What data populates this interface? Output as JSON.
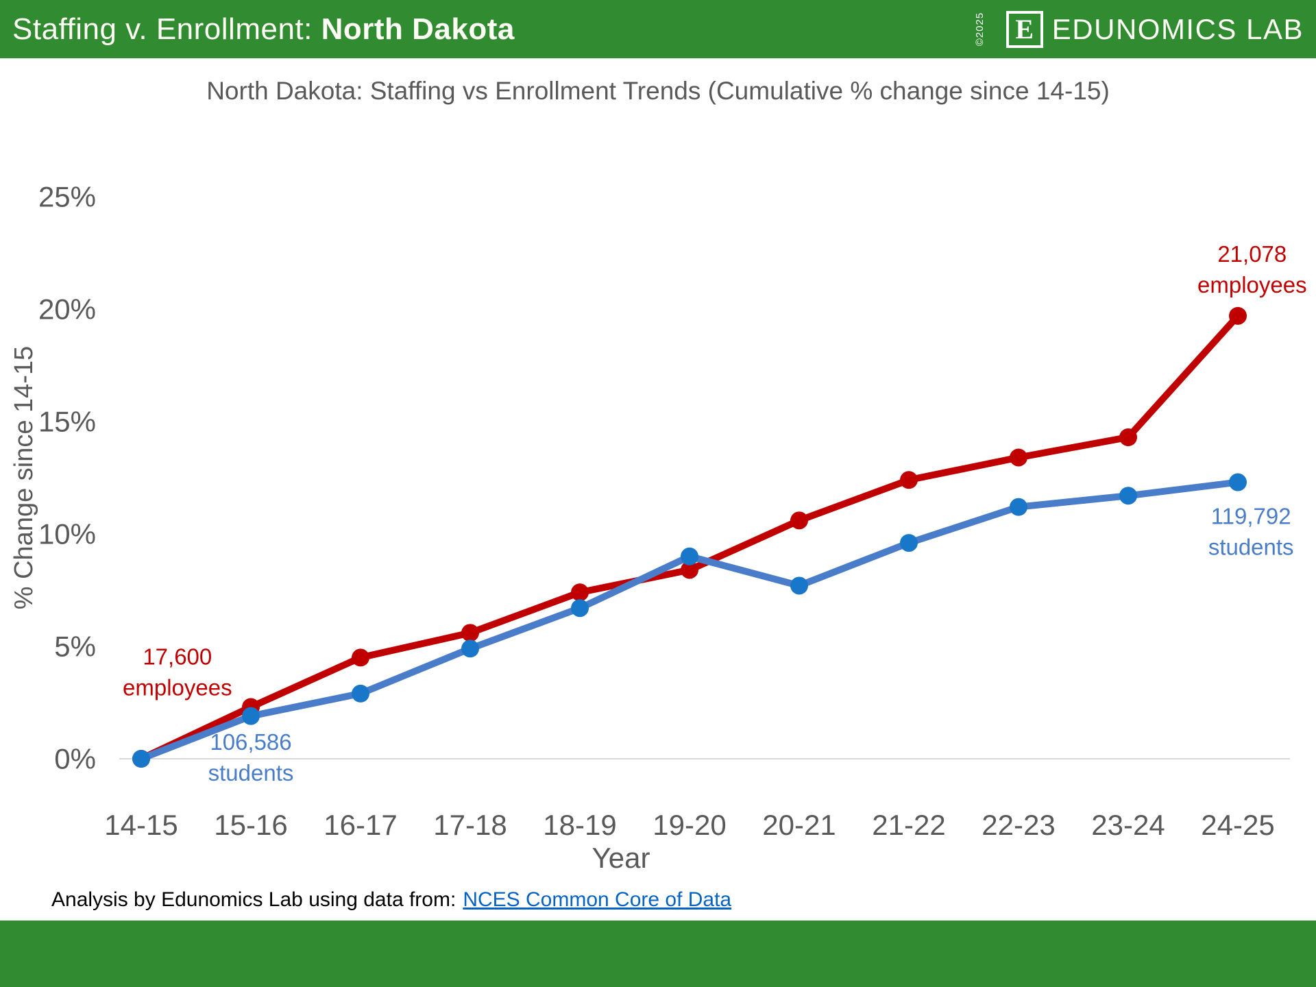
{
  "header": {
    "title_prefix": "Staffing v. Enrollment: ",
    "title_emphasis": "North Dakota",
    "copyright": "©2025",
    "logo_letter": "E",
    "brand": "EDUNOMICS LAB"
  },
  "footer": {
    "attribution": "Analysis by Edunomics Lab using data from:",
    "link_text": "NCES Common Core of Data"
  },
  "colors": {
    "brand_green": "#318B31",
    "employees_red": "#C00000",
    "students_line_blue": "#4A7DC9",
    "students_marker_blue": "#1877C9",
    "axis_gray": "#595959",
    "gridline_gray": "#D9D9D9",
    "link_blue": "#0563C1"
  },
  "chart_data": {
    "type": "line",
    "title": "North Dakota: Staffing vs Enrollment Trends (Cumulative % change since 14-15)",
    "xlabel": "Year",
    "ylabel": "% Change since 14-15",
    "categories": [
      "14-15",
      "15-16",
      "16-17",
      "17-18",
      "18-19",
      "19-20",
      "20-21",
      "21-22",
      "22-23",
      "23-24",
      "24-25"
    ],
    "series": [
      {
        "name": "employees",
        "color": "#C00000",
        "marker_color": "#C00000",
        "values": [
          0,
          2.3,
          4.5,
          5.6,
          7.4,
          8.4,
          10.6,
          12.4,
          13.4,
          14.3,
          19.7
        ]
      },
      {
        "name": "students",
        "color": "#4A7DC9",
        "marker_color": "#1877C9",
        "values": [
          0,
          1.9,
          2.9,
          4.9,
          6.7,
          9.0,
          7.7,
          9.6,
          11.2,
          11.7,
          12.3
        ]
      }
    ],
    "ylim": [
      0,
      25
    ],
    "ytick_values": [
      0,
      5,
      10,
      15,
      20,
      25
    ],
    "ytick_format": "{v}%",
    "grid": "only 0% baseline",
    "legend_position": "none (direct annotations on lines)",
    "annotations": [
      {
        "lines": [
          "17,600",
          "employees"
        ],
        "series": "employees",
        "color": "#C00000",
        "x": 0.33,
        "y": 4.55
      },
      {
        "lines": [
          "106,586",
          "students"
        ],
        "series": "students",
        "color": "#4A7DC9",
        "x": 1.0,
        "y": 0.75
      },
      {
        "lines": [
          "21,078",
          "employees"
        ],
        "series": "employees",
        "color": "#C00000",
        "x": 10.13,
        "y": 22.45
      },
      {
        "lines": [
          "119,792",
          "students"
        ],
        "series": "students",
        "color": "#4A7DC9",
        "x": 10.12,
        "y": 10.8
      }
    ]
  }
}
